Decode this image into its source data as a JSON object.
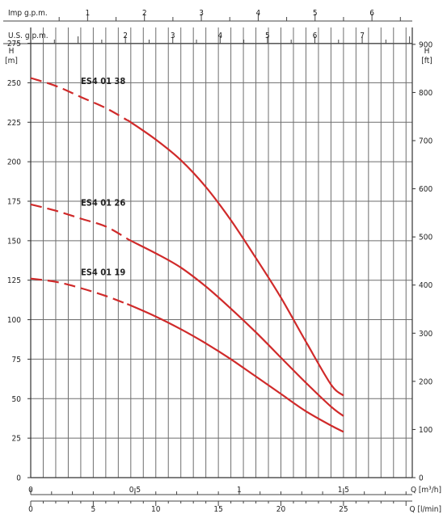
{
  "chart_data": {
    "type": "line",
    "title": "",
    "left_axis": {
      "label": "H",
      "unit": "[m]",
      "ticks": [
        0,
        25,
        50,
        75,
        100,
        125,
        150,
        175,
        200,
        225,
        250,
        275
      ],
      "range": [
        0,
        285
      ]
    },
    "right_axis": {
      "label": "H",
      "unit": "[ft]",
      "ticks": [
        0,
        100,
        200,
        300,
        400,
        500,
        600,
        700,
        800,
        900
      ]
    },
    "bottom_axis_m3h": {
      "label": "Q [m³/h]",
      "ticks": [
        "0",
        "0,5",
        "1",
        "1,5"
      ]
    },
    "bottom_axis_lmin": {
      "label": "Q [l/min]",
      "ticks": [
        "0",
        "5",
        "10",
        "15",
        "20",
        "25"
      ],
      "range": [
        0,
        30.5
      ]
    },
    "top_axis_imp": {
      "label": "Imp g.p.m.",
      "ticks": [
        "1",
        "2",
        "3",
        "4",
        "5",
        "6"
      ]
    },
    "top_axis_us": {
      "label": "U.S. g.p.m.",
      "ticks": [
        "2",
        "3",
        "4",
        "5",
        "6",
        "7"
      ]
    },
    "grid": true,
    "x_unit": "l/min",
    "series": [
      {
        "name": "ES4 01 38",
        "color": "#d02a2a",
        "dashed_until": 7.7,
        "points": [
          [
            0,
            253
          ],
          [
            2,
            248
          ],
          [
            4,
            241
          ],
          [
            6,
            234
          ],
          [
            8,
            225
          ],
          [
            10,
            214
          ],
          [
            12,
            201
          ],
          [
            14,
            184
          ],
          [
            16,
            163
          ],
          [
            18,
            139
          ],
          [
            20,
            114
          ],
          [
            22,
            86
          ],
          [
            24,
            59
          ],
          [
            25,
            52
          ]
        ]
      },
      {
        "name": "ES4 01 26",
        "color": "#d02a2a",
        "dashed_until": 7.7,
        "points": [
          [
            0,
            173
          ],
          [
            2,
            169
          ],
          [
            4,
            164
          ],
          [
            6,
            159
          ],
          [
            8,
            150
          ],
          [
            10,
            142
          ],
          [
            12,
            133
          ],
          [
            14,
            121
          ],
          [
            16,
            107
          ],
          [
            18,
            92
          ],
          [
            20,
            76
          ],
          [
            22,
            60
          ],
          [
            24,
            45
          ],
          [
            25,
            39
          ]
        ]
      },
      {
        "name": "ES4 01 19",
        "color": "#d02a2a",
        "dashed_until": 7.7,
        "points": [
          [
            0,
            126
          ],
          [
            2,
            124
          ],
          [
            4,
            120
          ],
          [
            6,
            115
          ],
          [
            8,
            109
          ],
          [
            10,
            102
          ],
          [
            12,
            94
          ],
          [
            14,
            85
          ],
          [
            16,
            75
          ],
          [
            18,
            64
          ],
          [
            20,
            53
          ],
          [
            22,
            42
          ],
          [
            24,
            33
          ],
          [
            25,
            29
          ]
        ]
      }
    ]
  }
}
